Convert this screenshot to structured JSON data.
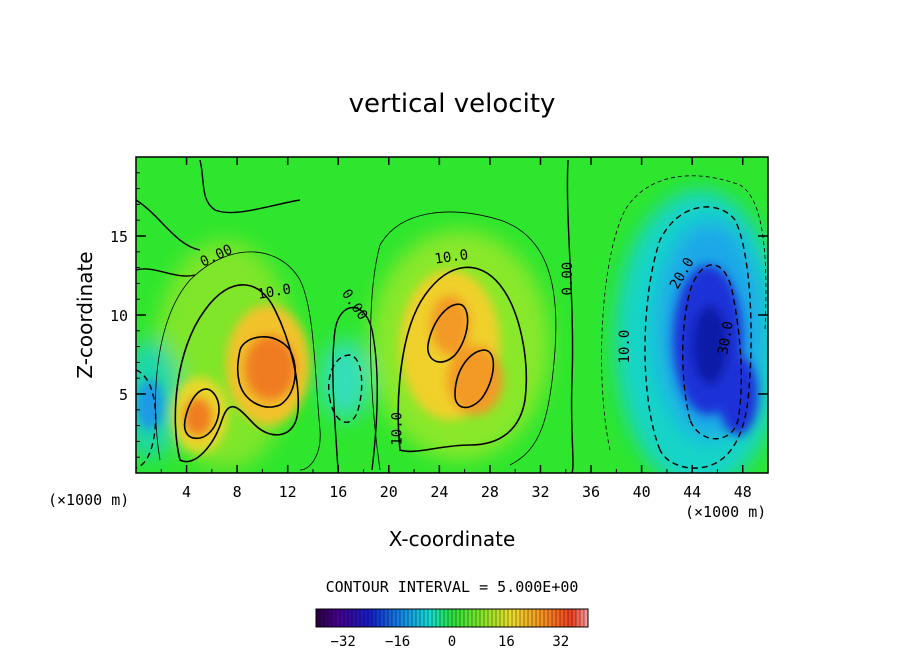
{
  "chart_data": {
    "type": "heatmap",
    "title": "vertical velocity",
    "xlabel": "X-coordinate",
    "ylabel": "Z-coordinate",
    "x_unit_left": "(×1000 m)",
    "x_unit_right": "(×1000 m)",
    "xlim": [
      0,
      50
    ],
    "ylim": [
      0,
      20
    ],
    "x_ticks": [
      4,
      8,
      12,
      16,
      20,
      24,
      28,
      32,
      36,
      40,
      44,
      48
    ],
    "y_ticks": [
      5,
      10,
      15
    ],
    "contour_interval_text": "CONTOUR INTERVAL = 5.000E+00",
    "contour_interval": 5,
    "colorbar": {
      "min": -40,
      "max": 40,
      "ticks": [
        -32,
        -16,
        0,
        16,
        32
      ]
    },
    "contour_labels": [
      {
        "text": "0.00",
        "x": 6.5,
        "z": 13.5,
        "angle": -25
      },
      {
        "text": "10.0",
        "x": 11,
        "z": 11.2,
        "angle": -10
      },
      {
        "text": "0.00",
        "x": 17,
        "z": 10.5,
        "angle": 55
      },
      {
        "text": "10.0",
        "x": 25,
        "z": 13.4,
        "angle": -8
      },
      {
        "text": "0.00",
        "x": 34.5,
        "z": 12.3,
        "angle": -90
      },
      {
        "text": "10.0",
        "x": 21,
        "z": 2.8,
        "angle": -90
      },
      {
        "text": "10.0",
        "x": 39,
        "z": 8.0,
        "angle": -90
      },
      {
        "text": "20.0",
        "x": 43.5,
        "z": 12.5,
        "angle": -60
      },
      {
        "text": "30.0",
        "x": 47,
        "z": 8.5,
        "angle": -80
      }
    ],
    "features": [
      {
        "kind": "updraft",
        "x": 5.3,
        "z": 3.6,
        "peak": 24
      },
      {
        "kind": "updraft",
        "x": 10.5,
        "z": 6.8,
        "peak": 27
      },
      {
        "kind": "updraft",
        "x": 24.8,
        "z": 8.8,
        "peak": 22
      },
      {
        "kind": "updraft",
        "x": 26.0,
        "z": 6.0,
        "peak": 22
      },
      {
        "kind": "downdraft",
        "x": 44.8,
        "z": 8.0,
        "peak": -34
      },
      {
        "kind": "downdraft",
        "x": 46.8,
        "z": 5.0,
        "peak": -30
      },
      {
        "kind": "downdraft",
        "x": 0.8,
        "z": 3.8,
        "peak": -16
      },
      {
        "kind": "downdraft",
        "x": 16.0,
        "z": 6.0,
        "peak": -12
      }
    ]
  }
}
